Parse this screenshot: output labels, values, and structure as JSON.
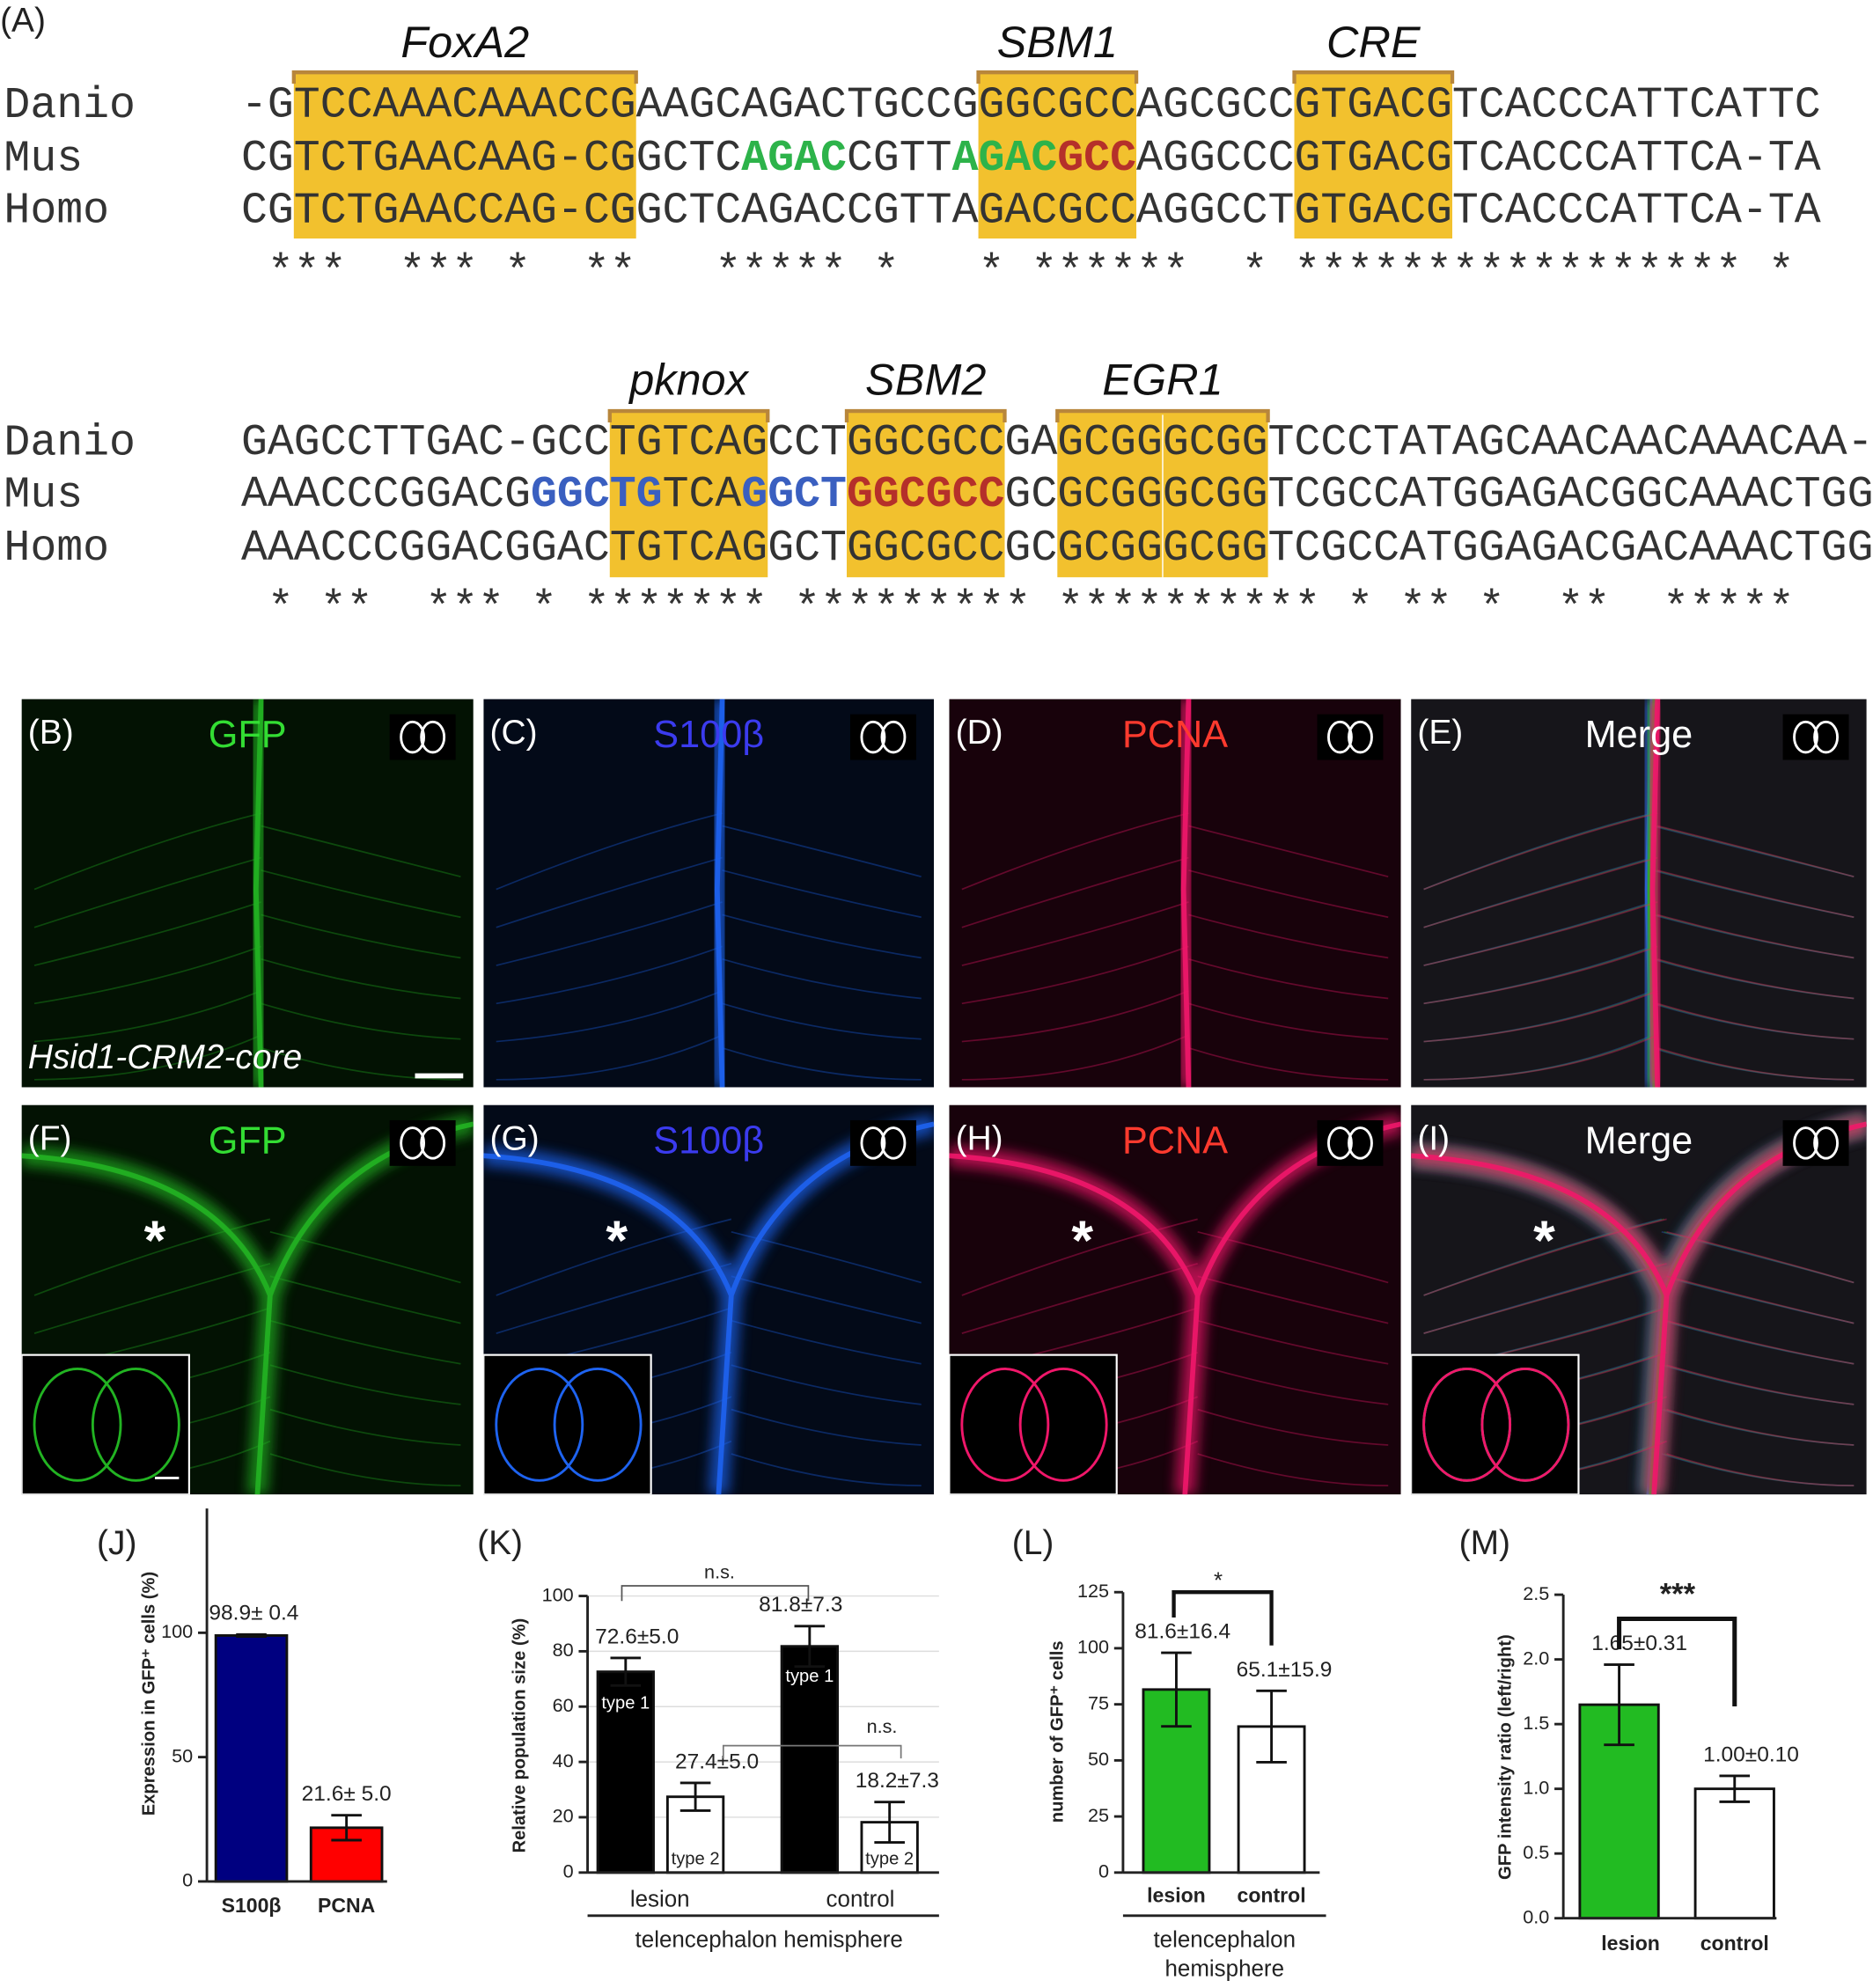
{
  "panel_a": {
    "label": "(A)",
    "blocks": [
      {
        "motifs": [
          "FoxA2",
          "SBM1",
          "CRE"
        ],
        "rows": [
          {
            "species": "Danio",
            "segments": [
              {
                "text": "-GTCCAAACAAACCGAAGCAGACTGCCGGGCGCCAGCGCCGTGACGTCACCCATTCATTC"
              }
            ]
          },
          {
            "species": "Mus",
            "segments": [
              {
                "text": "CGTCTGAACAAG-CGGCTC"
              },
              {
                "text": "AGAC",
                "color": "#2db34a"
              },
              {
                "text": "CGTT"
              },
              {
                "text": "AGAC",
                "color": "#2db34a"
              },
              {
                "text": "GCC",
                "color": "#b5302a"
              },
              {
                "text": "AGGCCCGTGACGTCACCCATTCA-TA"
              }
            ]
          },
          {
            "species": "Homo",
            "segments": [
              {
                "text": "CGTCTGAACCAG-CGGCTCAGACCGTTAGACGCCAGGCCTGTGACGTCACCCATTCA-TA"
              }
            ]
          }
        ],
        "conservation": " ***  *** *  **   ***** *   * ******  * ***************** *"
      },
      {
        "motifs": [
          "pknox",
          "SBM2",
          "EGR1"
        ],
        "rows": [
          {
            "species": "Danio",
            "segments": [
              {
                "text": "GAGCCTTGAC-GCCTGTCAGCCTGGCGCCGAGCGGGCGGTCCCTATAGCAACAACAAACAA-"
              }
            ]
          },
          {
            "species": "Mus",
            "segments": [
              {
                "text": "AAACCCGGACG"
              },
              {
                "text": "GGCTG",
                "color": "#3a5fc0"
              },
              {
                "text": "TCA"
              },
              {
                "text": "GGCT",
                "color": "#3a5fc0"
              },
              {
                "text": "GGCGCC",
                "color": "#b5302a"
              },
              {
                "text": "GCGCGGGCGGTCGCCATGGAGACGGCAAACTGG"
              }
            ]
          },
          {
            "species": "Homo",
            "segments": [
              {
                "text": "AAACCCGGACGGACTGTCAGGCTGGCGCCGCGCGGGCGGTCGCCATGGAGACGACAAACTGG"
              }
            ]
          }
        ],
        "conservation": " * **  *** * ******* ********* ********** * ** *  **  *****"
      }
    ]
  },
  "image_panels": [
    {
      "label": "(B)",
      "channel": "GFP",
      "color": "#33dd33",
      "caption": "Hsid1-CRM2-core"
    },
    {
      "label": "(C)",
      "channel": "S100β",
      "color": "#3b3bef"
    },
    {
      "label": "(D)",
      "channel": "PCNA",
      "color": "#ff3a2e"
    },
    {
      "label": "(E)",
      "channel": "Merge",
      "color": "#ffffff"
    },
    {
      "label": "(F)",
      "channel": "GFP",
      "color": "#33dd33",
      "marker": "*"
    },
    {
      "label": "(G)",
      "channel": "S100β",
      "color": "#3b3bef",
      "marker": "*"
    },
    {
      "label": "(H)",
      "channel": "PCNA",
      "color": "#ff3a2e",
      "marker": "*"
    },
    {
      "label": "(I)",
      "channel": "Merge",
      "color": "#ffffff",
      "marker": "*"
    }
  ],
  "chart_data": [
    {
      "type": "bar",
      "label": "(J)",
      "ylabel": "Expression in GFP⁺ cells (%)",
      "categories": [
        "S100β",
        "PCNA"
      ],
      "values": [
        98.9,
        21.6
      ],
      "errors": [
        0.4,
        5.0
      ],
      "value_labels": [
        "98.9± 0.4",
        "21.6± 5.0"
      ],
      "colors": [
        "#000080",
        "#ff0000"
      ],
      "ylim": [
        0,
        150
      ],
      "yticks": [
        0,
        50,
        100
      ]
    },
    {
      "type": "bar",
      "label": "(K)",
      "ylabel": "Relative population size (%)",
      "xlabel": "telencephalon hemisphere",
      "categories": [
        "lesion",
        "control"
      ],
      "series": [
        {
          "name": "type 1",
          "color": "#000000",
          "values": [
            72.6,
            81.8
          ],
          "errors": [
            5.0,
            7.3
          ],
          "value_labels": [
            "72.6±5.0",
            "81.8±7.3"
          ]
        },
        {
          "name": "type 2",
          "color": "#ffffff",
          "values": [
            27.4,
            18.2
          ],
          "errors": [
            5.0,
            7.3
          ],
          "value_labels": [
            "27.4±5.0",
            "18.2±7.3"
          ]
        }
      ],
      "ylim": [
        0,
        100
      ],
      "yticks": [
        0,
        20,
        40,
        60,
        80,
        100
      ],
      "grid": true,
      "annotations": [
        "n.s.",
        "n.s."
      ]
    },
    {
      "type": "bar",
      "label": "(L)",
      "ylabel": "number of GFP⁺ cells",
      "xlabel": [
        "telencephalon",
        "hemisphere"
      ],
      "categories": [
        "lesion",
        "control"
      ],
      "values": [
        81.6,
        65.1
      ],
      "errors": [
        16.4,
        15.9
      ],
      "value_labels": [
        "81.6±16.4",
        "65.1±15.9"
      ],
      "colors": [
        "#22bb22",
        "#ffffff"
      ],
      "ylim": [
        0,
        125
      ],
      "yticks": [
        0,
        25,
        50,
        75,
        100,
        125
      ],
      "annotations": [
        "*"
      ]
    },
    {
      "type": "bar",
      "label": "(M)",
      "ylabel": "GFP intensity ratio (left/right)",
      "categories": [
        "lesion",
        "control"
      ],
      "values": [
        1.65,
        1.0
      ],
      "errors": [
        0.31,
        0.1
      ],
      "value_labels": [
        "1.65±0.31",
        "1.00±0.10"
      ],
      "colors": [
        "#22bb22",
        "#ffffff"
      ],
      "ylim": [
        0,
        2.5
      ],
      "yticks": [
        {
          "value": 0,
          "label": "0.0"
        },
        0.5,
        {
          "value": 1,
          "label": "1.0"
        },
        1.5,
        {
          "value": 2,
          "label": "2.0"
        },
        2.5
      ],
      "annotations": [
        "***"
      ]
    }
  ]
}
